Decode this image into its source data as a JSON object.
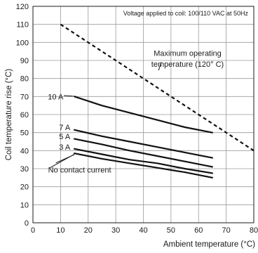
{
  "chart_data": {
    "type": "line",
    "note": "Voltage applied to coil: 100/110 VAC at 50Hz",
    "xlabel": "Ambient temperature (°C)",
    "ylabel": "Coil temperature rise (°C)",
    "xlim": [
      0,
      80
    ],
    "ylim": [
      0,
      120
    ],
    "xticks": [
      0,
      10,
      20,
      30,
      40,
      50,
      60,
      70,
      80
    ],
    "yticks": [
      0,
      10,
      20,
      30,
      40,
      50,
      60,
      70,
      80,
      90,
      100,
      110,
      120
    ],
    "grid": true,
    "series": [
      {
        "name": "10 A",
        "x": [
          15,
          25,
          35,
          45,
          55,
          65
        ],
        "y": [
          70,
          65,
          61,
          57,
          53,
          50
        ]
      },
      {
        "name": "7 A",
        "x": [
          15,
          25,
          35,
          45,
          55,
          65
        ],
        "y": [
          51.5,
          48,
          45,
          42,
          39,
          36
        ]
      },
      {
        "name": "5 A",
        "x": [
          15,
          25,
          35,
          45,
          55,
          65
        ],
        "y": [
          46.5,
          43.5,
          40,
          37,
          34,
          31
        ]
      },
      {
        "name": "3 A",
        "x": [
          15,
          25,
          35,
          45,
          55,
          65
        ],
        "y": [
          41,
          38,
          35,
          33,
          30,
          27.5
        ]
      },
      {
        "name": "No contact current",
        "x": [
          15,
          25,
          35,
          45,
          55,
          65
        ],
        "y": [
          38.5,
          35.5,
          33,
          30.5,
          28,
          25
        ]
      }
    ],
    "limit_line": {
      "label_line1": "Maximum operating",
      "label_line2": "temperature (120° C)",
      "x": [
        10,
        80
      ],
      "y": [
        110,
        40
      ]
    }
  }
}
